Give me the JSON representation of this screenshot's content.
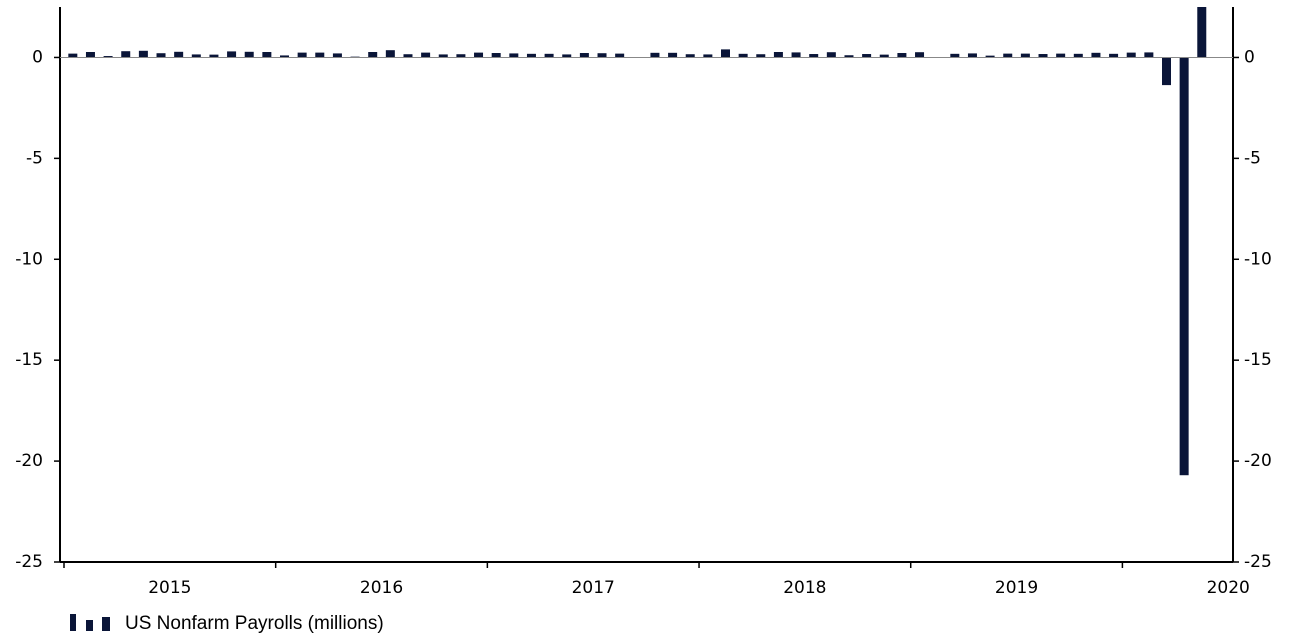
{
  "chart_data": {
    "type": "bar",
    "x_labels": [
      "2015",
      "2016",
      "2017",
      "2018",
      "2019",
      "2020"
    ],
    "series": [
      {
        "name": "US Nonfarm Payrolls (millions)",
        "color": "#0a1538",
        "values": [
          0.19,
          0.27,
          0.07,
          0.31,
          0.33,
          0.21,
          0.28,
          0.15,
          0.14,
          0.3,
          0.28,
          0.27,
          0.1,
          0.24,
          0.24,
          0.2,
          0.04,
          0.27,
          0.36,
          0.16,
          0.24,
          0.15,
          0.16,
          0.24,
          0.22,
          0.2,
          0.18,
          0.18,
          0.15,
          0.22,
          0.21,
          0.19,
          0.02,
          0.23,
          0.23,
          0.16,
          0.15,
          0.4,
          0.18,
          0.16,
          0.27,
          0.25,
          0.17,
          0.26,
          0.11,
          0.17,
          0.14,
          0.22,
          0.26,
          0.01,
          0.18,
          0.2,
          0.09,
          0.19,
          0.19,
          0.17,
          0.19,
          0.18,
          0.23,
          0.18,
          0.24,
          0.25,
          -1.37,
          -20.7,
          2.7
        ]
      }
    ],
    "ylim": [
      -25,
      2.5
    ],
    "yticks": [
      0,
      -5,
      -10,
      -15,
      -20,
      -25
    ],
    "y2lim": [
      -25,
      2.5
    ],
    "y2ticks": [
      0,
      -5,
      -10,
      -15,
      -20,
      -25
    ]
  }
}
